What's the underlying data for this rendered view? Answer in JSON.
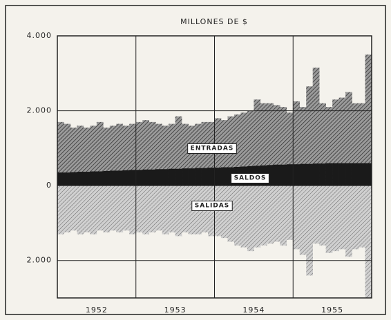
{
  "chart_data": {
    "type": "area-steps",
    "title": "MILLONES DE $",
    "years": [
      "1952",
      "1953",
      "1954",
      "1955"
    ],
    "months_per_year": 12,
    "ylim": [
      -3000,
      4000
    ],
    "yticks": [
      {
        "value": 4000,
        "label": "4.000"
      },
      {
        "value": 2000,
        "label": "2.000"
      },
      0,
      {
        "value": -2000,
        "label": "2.000"
      }
    ],
    "grid": true,
    "series": [
      {
        "name": "ENTRADAS",
        "color": "#555555",
        "values": [
          1700,
          1650,
          1550,
          1600,
          1550,
          1600,
          1700,
          1550,
          1600,
          1650,
          1600,
          1650,
          1700,
          1750,
          1700,
          1650,
          1600,
          1650,
          1850,
          1650,
          1600,
          1650,
          1700,
          1700,
          1800,
          1750,
          1850,
          1900,
          1950,
          2000,
          2300,
          2200,
          2200,
          2150,
          2100,
          1950,
          2250,
          2100,
          2650,
          3150,
          2200,
          2100,
          2300,
          2350,
          2500,
          2200,
          2200,
          3500
        ]
      },
      {
        "name": "SALDOS",
        "color": "#1a1a1a",
        "values": [
          350,
          350,
          360,
          370,
          370,
          380,
          380,
          390,
          400,
          400,
          410,
          420,
          420,
          430,
          430,
          440,
          440,
          450,
          450,
          460,
          460,
          470,
          470,
          480,
          480,
          490,
          490,
          500,
          510,
          520,
          530,
          540,
          550,
          560,
          560,
          570,
          570,
          580,
          580,
          590,
          590,
          600,
          600,
          600,
          600,
          600,
          600,
          600
        ]
      },
      {
        "name": "SALIDAS",
        "color": "#8a8a8a",
        "values": [
          -1300,
          -1250,
          -1200,
          -1300,
          -1250,
          -1300,
          -1200,
          -1250,
          -1200,
          -1250,
          -1200,
          -1300,
          -1250,
          -1300,
          -1250,
          -1200,
          -1300,
          -1250,
          -1350,
          -1250,
          -1300,
          -1300,
          -1250,
          -1350,
          -1350,
          -1400,
          -1500,
          -1600,
          -1650,
          -1750,
          -1650,
          -1600,
          -1550,
          -1500,
          -1600,
          -1450,
          -1700,
          -1850,
          -2400,
          -1550,
          -1600,
          -1800,
          -1750,
          -1700,
          -1900,
          -1700,
          -1650,
          -3000
        ]
      }
    ]
  }
}
